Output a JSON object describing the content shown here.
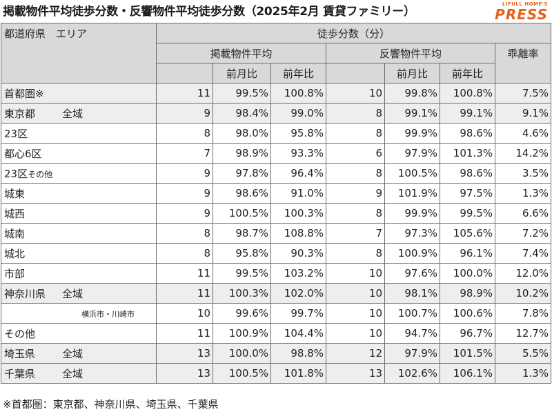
{
  "title": "掲載物件平均徒歩分数・反響物件平均徒歩分数（2025年2月 賃貸ファミリー）",
  "logo": {
    "top": "LIFULL HOME'S",
    "main": "PRESS"
  },
  "header": {
    "area_col": "都道府県　エリア",
    "walk_minutes": "徒歩分数（分）",
    "listed_avg": "掲載物件平均",
    "response_avg": "反響物件平均",
    "divergence": "乖離率",
    "mom": "前月比",
    "yoy": "前年比"
  },
  "rows": [
    {
      "pref": "首都圏※",
      "area": "",
      "l": "11",
      "lm": "99.5%",
      "ly": "100.8%",
      "r": "10",
      "rm": "99.8%",
      "ry": "100.8%",
      "d": "7.5%"
    },
    {
      "pref": "東京都",
      "area": "全域",
      "l": "9",
      "lm": "98.4%",
      "ly": "99.0%",
      "r": "8",
      "rm": "99.1%",
      "ry": "99.1%",
      "d": "9.1%"
    },
    {
      "pref": "",
      "area": "23区",
      "l": "8",
      "lm": "98.0%",
      "ly": "95.8%",
      "r": "8",
      "rm": "99.9%",
      "ry": "98.6%",
      "d": "4.6%"
    },
    {
      "pref": "",
      "area": "都心6区",
      "l": "7",
      "lm": "98.9%",
      "ly": "93.3%",
      "r": "6",
      "rm": "97.9%",
      "ry": "101.3%",
      "d": "14.2%"
    },
    {
      "pref": "",
      "area": "23区",
      "area_small": "その他",
      "l": "9",
      "lm": "97.8%",
      "ly": "96.4%",
      "r": "8",
      "rm": "100.5%",
      "ry": "98.6%",
      "d": "3.5%"
    },
    {
      "pref": "",
      "area": "城東",
      "l": "9",
      "lm": "98.6%",
      "ly": "91.0%",
      "r": "9",
      "rm": "101.9%",
      "ry": "97.5%",
      "d": "1.3%"
    },
    {
      "pref": "",
      "area": "城西",
      "l": "9",
      "lm": "100.5%",
      "ly": "100.3%",
      "r": "8",
      "rm": "99.9%",
      "ry": "99.5%",
      "d": "6.6%"
    },
    {
      "pref": "",
      "area": "城南",
      "l": "8",
      "lm": "98.7%",
      "ly": "108.8%",
      "r": "7",
      "rm": "97.3%",
      "ry": "105.6%",
      "d": "7.2%"
    },
    {
      "pref": "",
      "area": "城北",
      "l": "8",
      "lm": "95.8%",
      "ly": "90.3%",
      "r": "8",
      "rm": "100.9%",
      "ry": "96.1%",
      "d": "7.4%"
    },
    {
      "pref": "",
      "area": "市部",
      "l": "11",
      "lm": "99.5%",
      "ly": "103.2%",
      "r": "10",
      "rm": "97.6%",
      "ry": "100.0%",
      "d": "12.0%"
    },
    {
      "pref": "神奈川県",
      "area": "全域",
      "l": "11",
      "lm": "100.3%",
      "ly": "102.0%",
      "r": "10",
      "rm": "98.1%",
      "ry": "98.9%",
      "d": "10.2%"
    },
    {
      "pref": "",
      "area": "横浜市・川崎市",
      "l": "10",
      "lm": "99.6%",
      "ly": "99.7%",
      "r": "10",
      "rm": "100.7%",
      "ry": "100.6%",
      "d": "7.8%"
    },
    {
      "pref": "",
      "area": "その他",
      "l": "11",
      "lm": "100.9%",
      "ly": "104.4%",
      "r": "10",
      "rm": "94.7%",
      "ry": "96.7%",
      "d": "12.7%"
    },
    {
      "pref": "埼玉県",
      "area": "全域",
      "l": "13",
      "lm": "100.0%",
      "ly": "98.8%",
      "r": "12",
      "rm": "97.9%",
      "ry": "101.5%",
      "d": "5.5%"
    },
    {
      "pref": "千葉県",
      "area": "全域",
      "l": "13",
      "lm": "100.5%",
      "ly": "101.8%",
      "r": "13",
      "rm": "102.6%",
      "ry": "106.1%",
      "d": "1.3%"
    }
  ],
  "footnote": "※首都圏：東京都、神奈川県、埼玉県、千葉県"
}
